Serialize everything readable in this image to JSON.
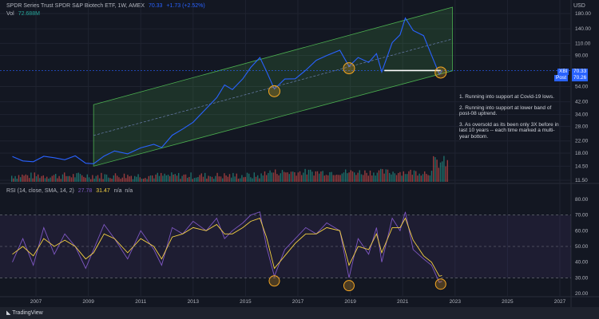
{
  "header": {
    "title": "SPDR Series Trust SPDR S&P Biotech ETF, 1W, AMEX",
    "last": "70.33",
    "change": "+1.73 (+2.52%)",
    "vol_label": "Vol",
    "vol_value": "72.688M"
  },
  "rsi_header": {
    "label": "RSI (14, close, SMA, 14, 2)",
    "rsi": "27.78",
    "ma": "31.47",
    "na1": "n/a",
    "na2": "n/a"
  },
  "currency": "USD",
  "price_tag": {
    "symbol": "XBI",
    "value": "70.33"
  },
  "post_tag": {
    "label": "Post",
    "value": "70.26"
  },
  "notes": [
    "1. Running into support at Covid-19 lows.",
    "2. Running into support at lower band of post-08 uptrend.",
    "3. As oversold as its been only 3X before in last 10 years -- each time marked a multi-year bottom."
  ],
  "footer": "TradingView",
  "colors": {
    "price": "#2962ff",
    "rsi": "#7e57c2",
    "rsi_ma": "#f5d142",
    "channel": "#4caf50",
    "circle": "#f5a623",
    "vol_up": "#26a69a",
    "vol_down": "#ef5350"
  },
  "chart_data": [
    {
      "type": "line",
      "scale": "log",
      "yticks": [
        180,
        140,
        110,
        90,
        54,
        42,
        34,
        28,
        22,
        18,
        14.5,
        11.5
      ],
      "ytick_labels": [
        "180.00",
        "140.00",
        "110.00",
        "90.00",
        "54.00",
        "42.00",
        "34.00",
        "28.00",
        "22.00",
        "18.00",
        "14.50",
        "11.50"
      ],
      "xticks": [
        "2007",
        "2009",
        "2011",
        "2013",
        "2015",
        "2017",
        "2019",
        "2021",
        "2023",
        "2025",
        "2027"
      ],
      "series": {
        "x": [
          2006.1,
          2006.5,
          2006.9,
          2007.3,
          2007.7,
          2008.1,
          2008.5,
          2008.9,
          2009.2,
          2009.6,
          2010.0,
          2010.5,
          2011.0,
          2011.5,
          2011.8,
          2012.2,
          2012.6,
          2013.0,
          2013.5,
          2013.9,
          2014.2,
          2014.5,
          2014.9,
          2015.2,
          2015.55,
          2015.8,
          2016.1,
          2016.5,
          2016.9,
          2017.3,
          2017.7,
          2018.1,
          2018.6,
          2018.95,
          2019.3,
          2019.7,
          2020.0,
          2020.2,
          2020.6,
          2020.9,
          2021.1,
          2021.4,
          2021.8,
          2022.1,
          2022.4,
          2022.5
        ],
        "y": [
          17,
          16,
          15.5,
          17,
          16.5,
          16,
          17.5,
          15.5,
          14.8,
          17,
          18.5,
          18,
          20,
          21,
          19.5,
          24,
          27,
          30,
          38,
          45,
          55,
          52,
          62,
          75,
          88,
          70,
          52,
          60,
          62,
          72,
          82,
          90,
          98,
          75,
          86,
          80,
          92,
          68,
          110,
          125,
          165,
          135,
          125,
          90,
          65,
          70.33
        ]
      },
      "channel": {
        "upper": [
          [
            2009.2,
            40
          ],
          [
            2022.9,
            200
          ]
        ],
        "lower": [
          [
            2009.2,
            14.5
          ],
          [
            2022.9,
            70
          ]
        ]
      },
      "support_line": {
        "from": 2020.3,
        "to": 2022.45,
        "value": 70.33
      },
      "markers": [
        [
          2016.1,
          50
        ],
        [
          2018.95,
          73
        ],
        [
          2022.45,
          68
        ]
      ],
      "volume_ylim": [
        0,
        90
      ]
    },
    {
      "type": "line",
      "ylim": [
        20,
        90
      ],
      "yticks": [
        80,
        70,
        60,
        50,
        40,
        30,
        20
      ],
      "ytick_labels": [
        "80.00",
        "70.00",
        "60.00",
        "50.00",
        "40.00",
        "30.00",
        "20.00"
      ],
      "bands": [
        30,
        50,
        70
      ],
      "rsi": {
        "x": [
          2006.1,
          2006.5,
          2006.9,
          2007.3,
          2007.7,
          2008.1,
          2008.5,
          2008.9,
          2009.2,
          2009.6,
          2010.0,
          2010.5,
          2011.0,
          2011.5,
          2011.8,
          2012.2,
          2012.6,
          2013.0,
          2013.5,
          2013.9,
          2014.2,
          2014.5,
          2014.9,
          2015.2,
          2015.55,
          2015.8,
          2016.1,
          2016.5,
          2016.9,
          2017.3,
          2017.7,
          2018.1,
          2018.6,
          2018.95,
          2019.3,
          2019.7,
          2020.0,
          2020.2,
          2020.6,
          2020.9,
          2021.1,
          2021.4,
          2021.8,
          2022.1,
          2022.4,
          2022.5
        ],
        "y": [
          40,
          55,
          38,
          62,
          45,
          58,
          50,
          36,
          48,
          64,
          55,
          42,
          60,
          48,
          38,
          62,
          58,
          66,
          60,
          68,
          55,
          60,
          65,
          70,
          72,
          50,
          31,
          48,
          55,
          62,
          58,
          65,
          60,
          30,
          55,
          45,
          62,
          40,
          68,
          60,
          72,
          48,
          42,
          38,
          27,
          27.78
        ]
      },
      "rsi_ma": {
        "y": [
          45,
          50,
          44,
          55,
          50,
          54,
          50,
          42,
          46,
          58,
          55,
          46,
          55,
          50,
          42,
          56,
          58,
          62,
          60,
          64,
          58,
          58,
          62,
          66,
          68,
          56,
          36,
          44,
          52,
          58,
          58,
          62,
          60,
          38,
          50,
          48,
          58,
          46,
          62,
          62,
          68,
          54,
          44,
          40,
          31,
          31.47
        ]
      },
      "markers": [
        [
          2016.1,
          28
        ],
        [
          2018.95,
          25
        ],
        [
          2022.45,
          26
        ]
      ]
    }
  ]
}
